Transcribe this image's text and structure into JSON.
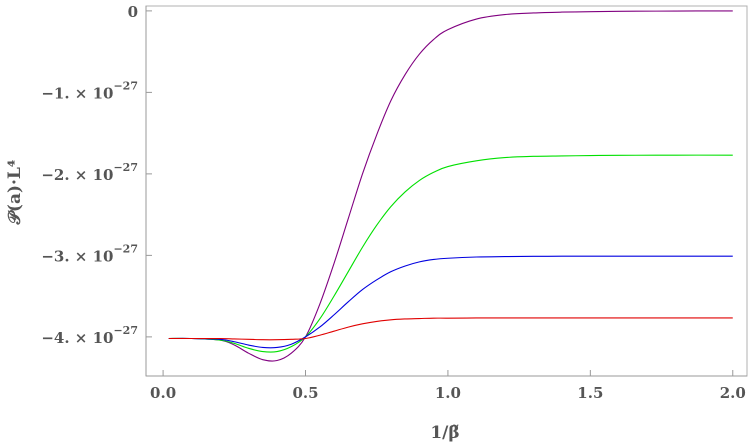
{
  "chart_data": {
    "type": "line",
    "xlabel": "1/β̃",
    "ylabel": "𝒫(a)·L⁴",
    "xlim": [
      -0.06,
      2.05
    ],
    "ylim": [
      -4.48e-27,
      6e-29
    ],
    "x_ticks": [
      {
        "value": 0.0,
        "label": "0.0"
      },
      {
        "value": 0.5,
        "label": "0.5"
      },
      {
        "value": 1.0,
        "label": "1.0"
      },
      {
        "value": 1.5,
        "label": "1.5"
      },
      {
        "value": 2.0,
        "label": "2.0"
      }
    ],
    "y_ticks": [
      {
        "value": 0,
        "mant": "0",
        "exp": ""
      },
      {
        "value": -1e-27,
        "mant": "−1. × 10",
        "exp": "−27"
      },
      {
        "value": -2e-27,
        "mant": "−2. × 10",
        "exp": "−27"
      },
      {
        "value": -3e-27,
        "mant": "−3. × 10",
        "exp": "−27"
      },
      {
        "value": -4e-27,
        "mant": "−4. × 10",
        "exp": "−27"
      }
    ],
    "series": [
      {
        "color": "#800080",
        "x": [
          0.02,
          0.1,
          0.2,
          0.25,
          0.3,
          0.35,
          0.4,
          0.45,
          0.5,
          0.55,
          0.6,
          0.65,
          0.7,
          0.75,
          0.8,
          0.85,
          0.9,
          0.95,
          1.0,
          1.1,
          1.2,
          1.3,
          1.4,
          1.5,
          1.6,
          1.8,
          2.0
        ],
        "y": [
          -4.02e-27,
          -4.02e-27,
          -4.04e-27,
          -4.1e-27,
          -4.2e-27,
          -4.28e-27,
          -4.29e-27,
          -4.2e-27,
          -4e-27,
          -3.6e-27,
          -3.1e-27,
          -2.55e-27,
          -2e-27,
          -1.52e-27,
          -1.1e-27,
          -7.8e-28,
          -5.3e-28,
          -3.5e-28,
          -2.3e-28,
          -1e-28,
          -4.5e-29,
          -2.5e-29,
          -1.5e-29,
          -1e-29,
          -5e-30,
          -2e-30,
          -0.0
        ]
      },
      {
        "color": "#00e000",
        "x": [
          0.02,
          0.1,
          0.2,
          0.25,
          0.3,
          0.35,
          0.4,
          0.45,
          0.5,
          0.55,
          0.6,
          0.65,
          0.7,
          0.75,
          0.8,
          0.85,
          0.9,
          0.95,
          1.0,
          1.1,
          1.2,
          1.3,
          1.4,
          1.5,
          1.6,
          1.8,
          2.0
        ],
        "y": [
          -4.02e-27,
          -4.02e-27,
          -4.04e-27,
          -4.08e-27,
          -4.14e-27,
          -4.18e-27,
          -4.18e-27,
          -4.12e-27,
          -4e-27,
          -3.78e-27,
          -3.5e-27,
          -3.2e-27,
          -2.9e-27,
          -2.63e-27,
          -2.4e-27,
          -2.22e-27,
          -2.08e-27,
          -1.98e-27,
          -1.91e-27,
          -1.84e-27,
          -1.8e-27,
          -1.785e-27,
          -1.78e-27,
          -1.775e-27,
          -1.772e-27,
          -1.77e-27,
          -1.77e-27
        ]
      },
      {
        "color": "#0000e0",
        "x": [
          0.02,
          0.1,
          0.2,
          0.25,
          0.3,
          0.35,
          0.4,
          0.45,
          0.5,
          0.55,
          0.6,
          0.65,
          0.7,
          0.75,
          0.8,
          0.85,
          0.9,
          0.95,
          1.0,
          1.1,
          1.2,
          1.3,
          1.4,
          1.5,
          1.6,
          1.8,
          2.0
        ],
        "y": [
          -4.02e-27,
          -4.02e-27,
          -4.03e-27,
          -4.06e-27,
          -4.1e-27,
          -4.13e-27,
          -4.13e-27,
          -4.09e-27,
          -4e-27,
          -3.88e-27,
          -3.73e-27,
          -3.57e-27,
          -3.42e-27,
          -3.3e-27,
          -3.2e-27,
          -3.13e-27,
          -3.08e-27,
          -3.05e-27,
          -3.035e-27,
          -3.02e-27,
          -3.015e-27,
          -3.012e-27,
          -3.01e-27,
          -3.01e-27,
          -3.01e-27,
          -3.01e-27,
          -3.01e-27
        ]
      },
      {
        "color": "#e00000",
        "x": [
          0.02,
          0.1,
          0.2,
          0.25,
          0.3,
          0.35,
          0.4,
          0.45,
          0.5,
          0.55,
          0.6,
          0.65,
          0.7,
          0.75,
          0.8,
          0.85,
          0.9,
          0.95,
          1.0,
          1.1,
          1.2,
          1.3,
          1.4,
          1.5,
          1.6,
          1.8,
          2.0
        ],
        "y": [
          -4.02e-27,
          -4.02e-27,
          -4.02e-27,
          -4.025e-27,
          -4.03e-27,
          -4.035e-27,
          -4.035e-27,
          -4.03e-27,
          -4.02e-27,
          -3.98e-27,
          -3.93e-27,
          -3.88e-27,
          -3.84e-27,
          -3.81e-27,
          -3.79e-27,
          -3.78e-27,
          -3.775e-27,
          -3.77e-27,
          -3.77e-27,
          -3.768e-27,
          -3.768e-27,
          -3.768e-27,
          -3.768e-27,
          -3.768e-27,
          -3.768e-27,
          -3.768e-27,
          -3.768e-27
        ]
      }
    ]
  }
}
